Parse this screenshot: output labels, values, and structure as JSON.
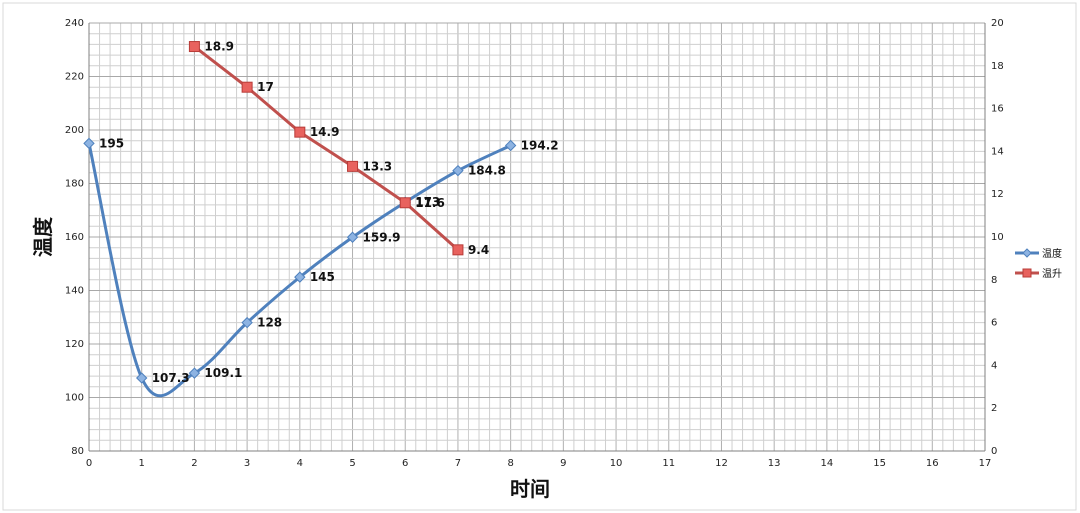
{
  "chart_data": {
    "type": "line",
    "title": "",
    "xlabel": "时间",
    "ylabel": "温度",
    "y2label": "",
    "xlim": [
      0,
      17
    ],
    "ylim": [
      80,
      240
    ],
    "y2lim": [
      0,
      20
    ],
    "xticks": [
      0,
      1,
      2,
      3,
      4,
      5,
      6,
      7,
      8,
      9,
      10,
      11,
      12,
      13,
      14,
      15,
      16,
      17
    ],
    "yticks": [
      80,
      100,
      120,
      140,
      160,
      180,
      200,
      220,
      240
    ],
    "y2ticks": [
      0,
      2,
      4,
      6,
      8,
      10,
      12,
      14,
      16,
      18,
      20
    ],
    "grid": true,
    "legend": "right",
    "series": [
      {
        "name": "温度",
        "axis": "left",
        "color": "#4f81bd",
        "marker": "diamond",
        "smooth": true,
        "x": [
          0,
          1,
          2,
          3,
          4,
          5,
          6,
          7,
          8
        ],
        "values": [
          195,
          107.3,
          109.1,
          128,
          145,
          159.9,
          173,
          184.8,
          194.2
        ],
        "labels": [
          "195",
          "107.3",
          "109.1",
          "128",
          "145",
          "159.9",
          "173",
          "184.8",
          "194.2"
        ]
      },
      {
        "name": "温升",
        "axis": "right",
        "color": "#c0504d",
        "marker": "square",
        "smooth": false,
        "x": [
          2,
          3,
          4,
          5,
          6,
          7
        ],
        "values": [
          18.9,
          17,
          14.9,
          13.3,
          11.6,
          9.4
        ],
        "labels": [
          "18.9",
          "17",
          "14.9",
          "13.3",
          "11.6",
          "9.4"
        ]
      }
    ]
  }
}
